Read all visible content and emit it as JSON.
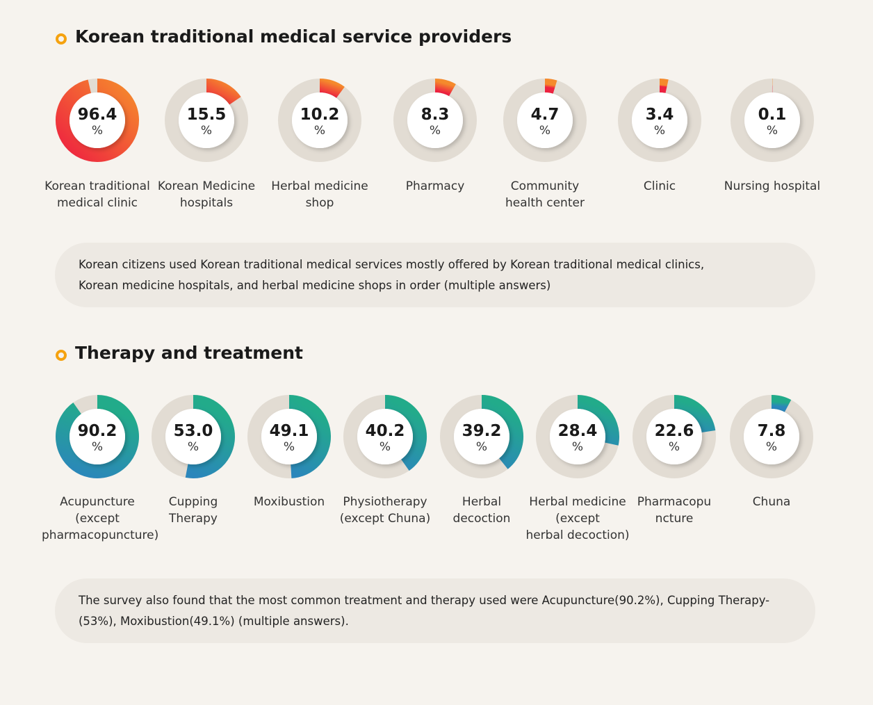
{
  "chart_data": [
    {
      "type": "donut",
      "title": "Korean traditional medical service providers",
      "categories": [
        "Korean traditional\nmedical clinic",
        "Korean Medicine\nhospitals",
        "Herbal medicine\nshop",
        "Pharmacy",
        "Community\nhealth center",
        "Clinic",
        "Nursing hospital"
      ],
      "values": [
        96.4,
        15.5,
        10.2,
        8.3,
        4.7,
        3.4,
        0.1
      ],
      "value_labels": [
        "96.4",
        "15.5",
        "10.2",
        "8.3",
        "4.7",
        "3.4",
        "0.1"
      ],
      "unit": "%",
      "colors": [
        "#f58a2c",
        "#ee2240"
      ],
      "note": "Korean citizens used Korean traditional medical services mostly offered by Korean traditional medical clinics,\nKorean medicine hospitals, and herbal medicine shops in order (multiple answers)"
    },
    {
      "type": "donut",
      "title": "Therapy and treatment",
      "categories": [
        "Acupuncture\n(except\npharmacopuncture)",
        "Cupping\nTherapy",
        "Moxibustion",
        "Physiotherapy\n(except Chuna)",
        "Herbal\ndecoction",
        "Herbal medicine\n(except\nherbal decoction)",
        "Pharmacopu\nncture",
        "Chuna"
      ],
      "values": [
        90.2,
        53.0,
        49.1,
        40.2,
        39.2,
        28.4,
        22.6,
        7.8
      ],
      "value_labels": [
        "90.2",
        "53.0",
        "49.1",
        "40.2",
        "39.2",
        "28.4",
        "22.6",
        "7.8"
      ],
      "unit": "%",
      "colors": [
        "#22ab8a",
        "#2b86bb"
      ],
      "note": "The survey also found that the most common treatment and therapy used were Acupuncture(90.2%), Cupping Therapy-\n(53%), Moxibustion(49.1%) (multiple answers)."
    }
  ]
}
